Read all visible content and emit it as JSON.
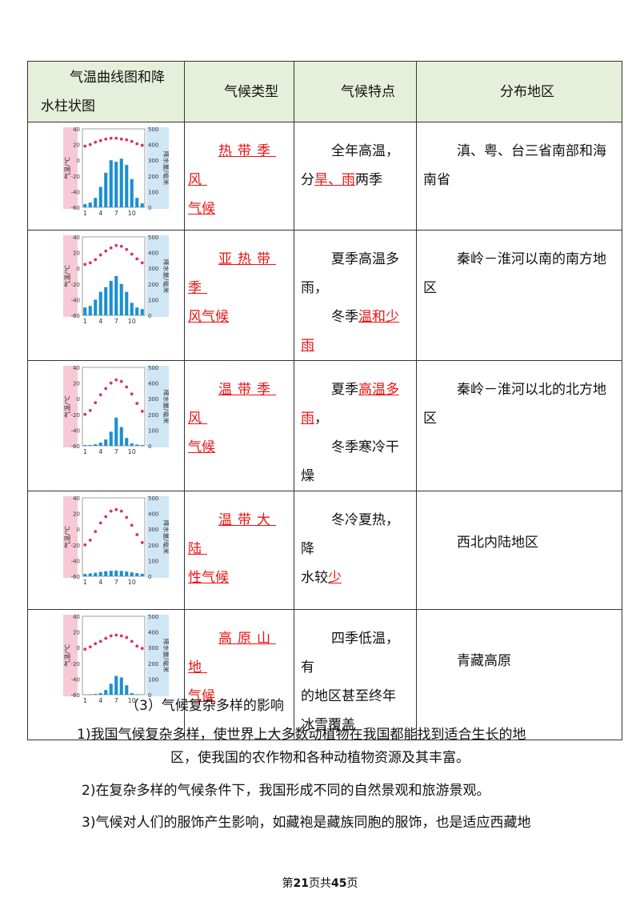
{
  "header": {
    "col1_line1": "气温曲线图和降",
    "col1_line2": "水柱状图",
    "col2": "气候类型",
    "col3": "气候特点",
    "col4": "分布地区"
  },
  "chart_axes": {
    "temp_label": "气温/℃",
    "precip_label": "降水量/毫米",
    "temp_ticks": [
      "40",
      "20",
      "0",
      "-20",
      "-40",
      "-60"
    ],
    "precip_ticks": [
      "500",
      "400",
      "300",
      "200",
      "100",
      "0"
    ],
    "month_ticks": [
      "1",
      "4",
      "7",
      "10"
    ]
  },
  "rows": [
    {
      "type_parts": [
        {
          "text": "热带季风",
          "red": true
        },
        {
          "text": "气候",
          "red": true
        }
      ],
      "feature_lines": [
        [
          {
            "text": "全年高温，",
            "red": false
          }
        ],
        [
          {
            "text": "分",
            "red": false
          },
          {
            "text": "旱、雨",
            "red": true
          },
          {
            "text": "两季",
            "red": false
          }
        ]
      ],
      "distribution": "滇、粤、台三省南部和海南省",
      "chart_data": {
        "type": "bar+line",
        "x": [
          1,
          2,
          3,
          4,
          5,
          6,
          7,
          8,
          9,
          10,
          11,
          12
        ],
        "temperature": [
          18,
          20,
          23,
          25,
          27,
          28,
          28,
          27,
          26,
          24,
          21,
          19
        ],
        "precipitation": [
          20,
          30,
          60,
          130,
          220,
          300,
          290,
          310,
          270,
          180,
          60,
          25
        ],
        "ylim_temp": [
          -60,
          40
        ],
        "ylim_precip": [
          0,
          500
        ]
      }
    },
    {
      "type_parts": [
        {
          "text": "亚热带季",
          "red": true
        },
        {
          "text": "风气候",
          "red": true
        }
      ],
      "feature_lines": [
        [
          {
            "text": "夏季高温多",
            "red": false
          }
        ],
        [
          {
            "text": "雨，",
            "red": false
          }
        ],
        [
          {
            "text": "冬季",
            "red": false
          },
          {
            "text": "温和少",
            "red": true
          }
        ],
        [
          {
            "text": "雨",
            "red": true
          }
        ]
      ],
      "distribution": "秦岭－淮河以南的南方地区",
      "chart_data": {
        "type": "bar+line",
        "x": [
          1,
          2,
          3,
          4,
          5,
          6,
          7,
          8,
          9,
          10,
          11,
          12
        ],
        "temperature": [
          5,
          7,
          11,
          17,
          22,
          26,
          29,
          28,
          24,
          18,
          12,
          7
        ],
        "precipitation": [
          50,
          60,
          100,
          150,
          180,
          220,
          250,
          200,
          150,
          80,
          50,
          40
        ],
        "ylim_temp": [
          -60,
          40
        ],
        "ylim_precip": [
          0,
          500
        ]
      }
    },
    {
      "type_parts": [
        {
          "text": "温带季风",
          "red": true
        },
        {
          "text": "气候",
          "red": true
        }
      ],
      "feature_lines": [
        [
          {
            "text": "夏季",
            "red": false
          },
          {
            "text": "高温多",
            "red": true
          }
        ],
        [
          {
            "text": "雨",
            "red": true
          },
          {
            "text": "，",
            "red": false
          }
        ],
        [
          {
            "text": "冬季寒冷干",
            "red": false
          }
        ],
        [
          {
            "text": "燥",
            "red": false
          }
        ]
      ],
      "distribution": "秦岭－淮河以北的北方地区",
      "chart_data": {
        "type": "bar+line",
        "x": [
          1,
          2,
          3,
          4,
          5,
          6,
          7,
          8,
          9,
          10,
          11,
          12
        ],
        "temperature": [
          -20,
          -15,
          -5,
          5,
          13,
          20,
          24,
          22,
          15,
          6,
          -6,
          -16
        ],
        "precipitation": [
          5,
          5,
          10,
          20,
          40,
          90,
          180,
          120,
          50,
          15,
          8,
          5
        ],
        "ylim_temp": [
          -60,
          40
        ],
        "ylim_precip": [
          0,
          500
        ]
      }
    },
    {
      "type_parts": [
        {
          "text": "温带大陆",
          "red": true
        },
        {
          "text": "性气候",
          "red": true
        }
      ],
      "feature_lines": [
        [
          {
            "text": "冬冷夏热，降",
            "red": false
          }
        ],
        [
          {
            "text": "水较",
            "red": false
          },
          {
            "text": "少",
            "red": true
          }
        ]
      ],
      "distribution": "西北内陆地区",
      "chart_data": {
        "type": "bar+line",
        "x": [
          1,
          2,
          3,
          4,
          5,
          6,
          7,
          8,
          9,
          10,
          11,
          12
        ],
        "temperature": [
          -20,
          -14,
          -3,
          8,
          16,
          23,
          25,
          23,
          15,
          5,
          -7,
          -17
        ],
        "precipitation": [
          15,
          18,
          22,
          28,
          32,
          35,
          36,
          34,
          30,
          25,
          20,
          16
        ],
        "ylim_temp": [
          -60,
          40
        ],
        "ylim_precip": [
          0,
          500
        ]
      }
    },
    {
      "type_parts": [
        {
          "text": "高原山地",
          "red": true
        },
        {
          "text": "气候",
          "red": true
        }
      ],
      "feature_lines": [
        [
          {
            "text": "四季低温，有",
            "red": false
          }
        ],
        [
          {
            "text": "的地区甚至终年",
            "red": false
          }
        ],
        [
          {
            "text": "冰雪覆盖",
            "red": false
          }
        ]
      ],
      "distribution": "青藏高原",
      "chart_data": {
        "type": "bar+line",
        "x": [
          1,
          2,
          3,
          4,
          5,
          6,
          7,
          8,
          9,
          10,
          11,
          12
        ],
        "temperature": [
          -2,
          1,
          5,
          8,
          12,
          15,
          16,
          15,
          13,
          8,
          2,
          -1
        ],
        "precipitation": [
          2,
          3,
          5,
          10,
          30,
          70,
          120,
          110,
          60,
          10,
          3,
          2
        ],
        "ylim_temp": [
          -60,
          40
        ],
        "ylim_precip": [
          0,
          500
        ]
      }
    }
  ],
  "section_title": "（3）气候复杂多样的影响",
  "paragraphs": [
    "1)我国气候复杂多样，使世界上大多数动植物在我国都能找到适合生长的地",
    "区，使我国的农作物和各种动植物资源及其丰富。",
    "2)在复杂多样的气候条件下，我国形成不同的自然景观和旅游景观。",
    "3)气候对人们的服饰产生影响，如藏袍是藏族同胞的服饰，也是适应西藏地"
  ],
  "footer": {
    "pre": "第",
    "page": "21",
    "mid": "页共",
    "total": "45",
    "post": "页"
  }
}
